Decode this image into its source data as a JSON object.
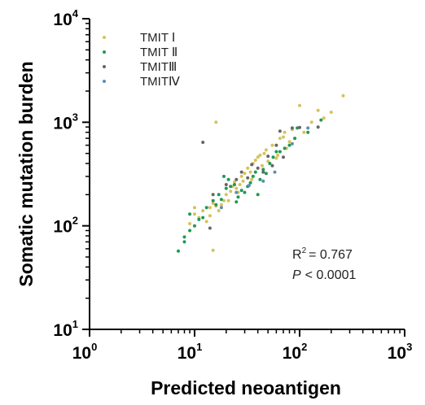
{
  "chart_data": {
    "type": "scatter",
    "xlabel": "Predicted neoantigen",
    "ylabel": "Somatic mutation burden",
    "xscale": "log",
    "yscale": "log",
    "xlim": [
      1,
      1000
    ],
    "ylim": [
      10,
      10000
    ],
    "x_ticks": [
      {
        "base": "10",
        "exp": "0"
      },
      {
        "base": "10",
        "exp": "1"
      },
      {
        "base": "10",
        "exp": "2"
      },
      {
        "base": "10",
        "exp": "3"
      }
    ],
    "y_ticks": [
      {
        "base": "10",
        "exp": "1"
      },
      {
        "base": "10",
        "exp": "2"
      },
      {
        "base": "10",
        "exp": "3"
      },
      {
        "base": "10",
        "exp": "4"
      }
    ],
    "legend_position": "top-left",
    "annotation": {
      "r2_label": "R",
      "r2_exp": "2",
      "r2_value": "= 0.767",
      "p_label": "P",
      "p_value": "< 0.0001"
    },
    "series": [
      {
        "name": "TMIT Ⅰ",
        "color": "#d4c35c",
        "points": [
          [
            9,
            105
          ],
          [
            10,
            130
          ],
          [
            10,
            150
          ],
          [
            11,
            120
          ],
          [
            12,
            140
          ],
          [
            13,
            110
          ],
          [
            14,
            150
          ],
          [
            14,
            125
          ],
          [
            15,
            165
          ],
          [
            15,
            58
          ],
          [
            16,
            155
          ],
          [
            16,
            1000
          ],
          [
            17,
            140
          ],
          [
            18,
            160
          ],
          [
            19,
            175
          ],
          [
            20,
            200
          ],
          [
            21,
            175
          ],
          [
            22,
            215
          ],
          [
            23,
            240
          ],
          [
            24,
            265
          ],
          [
            25,
            230
          ],
          [
            26,
            210
          ],
          [
            27,
            250
          ],
          [
            28,
            300
          ],
          [
            29,
            270
          ],
          [
            30,
            320
          ],
          [
            32,
            360
          ],
          [
            34,
            330
          ],
          [
            35,
            280
          ],
          [
            36,
            400
          ],
          [
            38,
            430
          ],
          [
            40,
            460
          ],
          [
            42,
            480
          ],
          [
            44,
            380
          ],
          [
            46,
            500
          ],
          [
            48,
            540
          ],
          [
            50,
            420
          ],
          [
            55,
            600
          ],
          [
            60,
            450
          ],
          [
            62,
            480
          ],
          [
            65,
            700
          ],
          [
            70,
            720
          ],
          [
            72,
            800
          ],
          [
            75,
            560
          ],
          [
            80,
            650
          ],
          [
            85,
            850
          ],
          [
            90,
            700
          ],
          [
            100,
            1450
          ],
          [
            110,
            800
          ],
          [
            130,
            1000
          ],
          [
            150,
            1300
          ],
          [
            170,
            1100
          ],
          [
            200,
            1250
          ],
          [
            260,
            1800
          ]
        ]
      },
      {
        "name": "TMIT Ⅱ",
        "color": "#1f9955",
        "points": [
          [
            7,
            57
          ],
          [
            8,
            70
          ],
          [
            8,
            78
          ],
          [
            9,
            90
          ],
          [
            9,
            130
          ],
          [
            10,
            100
          ],
          [
            11,
            115
          ],
          [
            12,
            120
          ],
          [
            13,
            150
          ],
          [
            15,
            175
          ],
          [
            16,
            160
          ],
          [
            17,
            200
          ],
          [
            18,
            180
          ],
          [
            19,
            300
          ],
          [
            20,
            230
          ],
          [
            21,
            280
          ],
          [
            22,
            240
          ],
          [
            24,
            250
          ],
          [
            25,
            170
          ],
          [
            26,
            190
          ],
          [
            28,
            220
          ],
          [
            30,
            210
          ],
          [
            32,
            240
          ],
          [
            34,
            260
          ],
          [
            36,
            300
          ],
          [
            38,
            330
          ],
          [
            40,
            200
          ],
          [
            42,
            280
          ],
          [
            45,
            350
          ],
          [
            48,
            320
          ],
          [
            52,
            400
          ],
          [
            56,
            460
          ],
          [
            60,
            520
          ],
          [
            65,
            520
          ],
          [
            72,
            560
          ],
          [
            80,
            600
          ],
          [
            90,
            700
          ],
          [
            95,
            880
          ],
          [
            120,
            800
          ],
          [
            160,
            1050
          ]
        ]
      },
      {
        "name": "TMITⅢ",
        "color": "#666666",
        "points": [
          [
            12,
            640
          ],
          [
            14,
            95
          ],
          [
            15,
            200
          ],
          [
            20,
            250
          ],
          [
            25,
            280
          ],
          [
            28,
            330
          ],
          [
            32,
            290
          ],
          [
            35,
            390
          ],
          [
            40,
            360
          ],
          [
            45,
            330
          ],
          [
            50,
            470
          ],
          [
            55,
            380
          ],
          [
            60,
            600
          ],
          [
            65,
            820
          ],
          [
            70,
            460
          ],
          [
            85,
            880
          ],
          [
            100,
            890
          ],
          [
            150,
            900
          ]
        ]
      },
      {
        "name": "TMITⅣ",
        "color": "#5b8db5",
        "points": [
          [
            18,
            150
          ],
          [
            25,
            210
          ],
          [
            33,
            245
          ],
          [
            45,
            270
          ],
          [
            58,
            330
          ],
          [
            85,
            620
          ],
          [
            120,
            880
          ]
        ]
      }
    ]
  }
}
